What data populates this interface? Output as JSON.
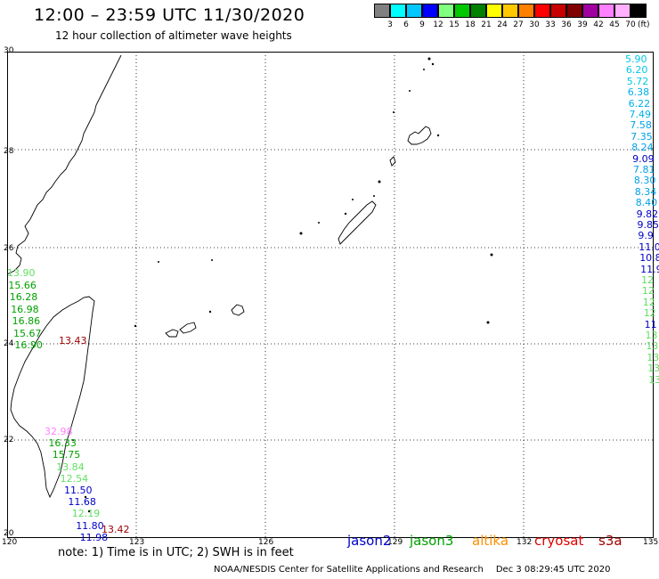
{
  "title": "12:00 – 23:59 UTC 11/30/2020",
  "subtitle": "12 hour collection of altimeter wave heights",
  "legend": {
    "colors": [
      "#808080",
      "#00ffff",
      "#00c8ff",
      "#0000ff",
      "#80ff80",
      "#00c800",
      "#008000",
      "#ffff00",
      "#ffc800",
      "#ff8000",
      "#ff0000",
      "#c80000",
      "#800000",
      "#a000a0",
      "#ff80ff",
      "#ffb0ff",
      "#000000"
    ],
    "labels": [
      "3",
      "6",
      "9",
      "12",
      "15",
      "18",
      "21",
      "24",
      "27",
      "30",
      "33",
      "36",
      "39",
      "42",
      "45",
      "70"
    ],
    "unit": "(ft)"
  },
  "axes": {
    "lon_labels": [
      "120",
      "123",
      "126",
      "129",
      "132",
      "135"
    ],
    "lat_labels": [
      "30",
      "28",
      "26",
      "24",
      "22",
      "20"
    ]
  },
  "note": "note: 1) Time is in UTC; 2) SWH is in feet",
  "satellites": [
    {
      "name": "jason2",
      "color": "#0000c8"
    },
    {
      "name": "jason3",
      "color": "#00a000"
    },
    {
      "name": "altika",
      "color": "#ff9000"
    },
    {
      "name": "cryosat",
      "color": "#e00000"
    },
    {
      "name": "s3a",
      "color": "#a00000"
    }
  ],
  "credit": {
    "org": "NOAA/NESDIS Center for Satellite Applications and Research",
    "timestamp": "Dec  3 08:29:45 UTC 2020"
  },
  "track_right": [
    {
      "v": "5.90",
      "c": "#00c8e8"
    },
    {
      "v": "6.20",
      "c": "#00c8e8"
    },
    {
      "v": "5.72",
      "c": "#00c8e8"
    },
    {
      "v": "6.38",
      "c": "#00b0e8"
    },
    {
      "v": "6.22",
      "c": "#00b0e8"
    },
    {
      "v": "7.49",
      "c": "#00b0e8"
    },
    {
      "v": "7.58",
      "c": "#00a0e8"
    },
    {
      "v": "7.35",
      "c": "#00a0e8"
    },
    {
      "v": "8.24",
      "c": "#00a0e8"
    },
    {
      "v": "9.09",
      "c": "#0000c8"
    },
    {
      "v": "7.81",
      "c": "#00a0e8"
    },
    {
      "v": "8.30",
      "c": "#00a0e8"
    },
    {
      "v": "8.34",
      "c": "#00a0e8"
    },
    {
      "v": "8.40",
      "c": "#00a0e8"
    },
    {
      "v": "9.82",
      "c": "#0000c8"
    },
    {
      "v": "9.85",
      "c": "#0000c8"
    },
    {
      "v": "9.9",
      "c": "#0000c8"
    },
    {
      "v": "11.0",
      "c": "#0000c8"
    },
    {
      "v": "10.8",
      "c": "#0000c8"
    },
    {
      "v": "11.9",
      "c": "#0000c8"
    },
    {
      "v": "12",
      "c": "#60e060"
    },
    {
      "v": "12",
      "c": "#60e060"
    },
    {
      "v": "12",
      "c": "#60e060"
    },
    {
      "v": "12",
      "c": "#60e060"
    },
    {
      "v": "11",
      "c": "#0000c8"
    },
    {
      "v": "13",
      "c": "#60e060"
    },
    {
      "v": "13",
      "c": "#60e060"
    },
    {
      "v": "13",
      "c": "#60e060"
    },
    {
      "v": "13",
      "c": "#60e060"
    },
    {
      "v": "13",
      "c": "#60e060"
    }
  ],
  "track_taiwan": [
    {
      "v": "13.90",
      "c": "#60e060"
    },
    {
      "v": "15.66",
      "c": "#00a000"
    },
    {
      "v": "16.28",
      "c": "#00a000"
    },
    {
      "v": "16.98",
      "c": "#00a000"
    },
    {
      "v": "16.86",
      "c": "#00a000"
    },
    {
      "v": "15.67",
      "c": "#00a000"
    },
    {
      "v": "16.90",
      "c": "#00a000"
    }
  ],
  "track_south": [
    {
      "v": "32.98",
      "c": "#ff80ff"
    },
    {
      "v": "16.33",
      "c": "#00a000"
    },
    {
      "v": "15.75",
      "c": "#00a000"
    },
    {
      "v": "13.84",
      "c": "#60e060"
    },
    {
      "v": "12.54",
      "c": "#60e060"
    },
    {
      "v": "11.50",
      "c": "#0000c8"
    },
    {
      "v": "11.68",
      "c": "#0000c8"
    },
    {
      "v": "12.19",
      "c": "#60e060"
    },
    {
      "v": "11.80",
      "c": "#0000c8"
    },
    {
      "v": "11.98",
      "c": "#0000c8"
    }
  ],
  "cryosat_labels": [
    {
      "v": "13.43",
      "c": "#a00000"
    },
    {
      "v": "13.42",
      "c": "#a00000"
    }
  ]
}
